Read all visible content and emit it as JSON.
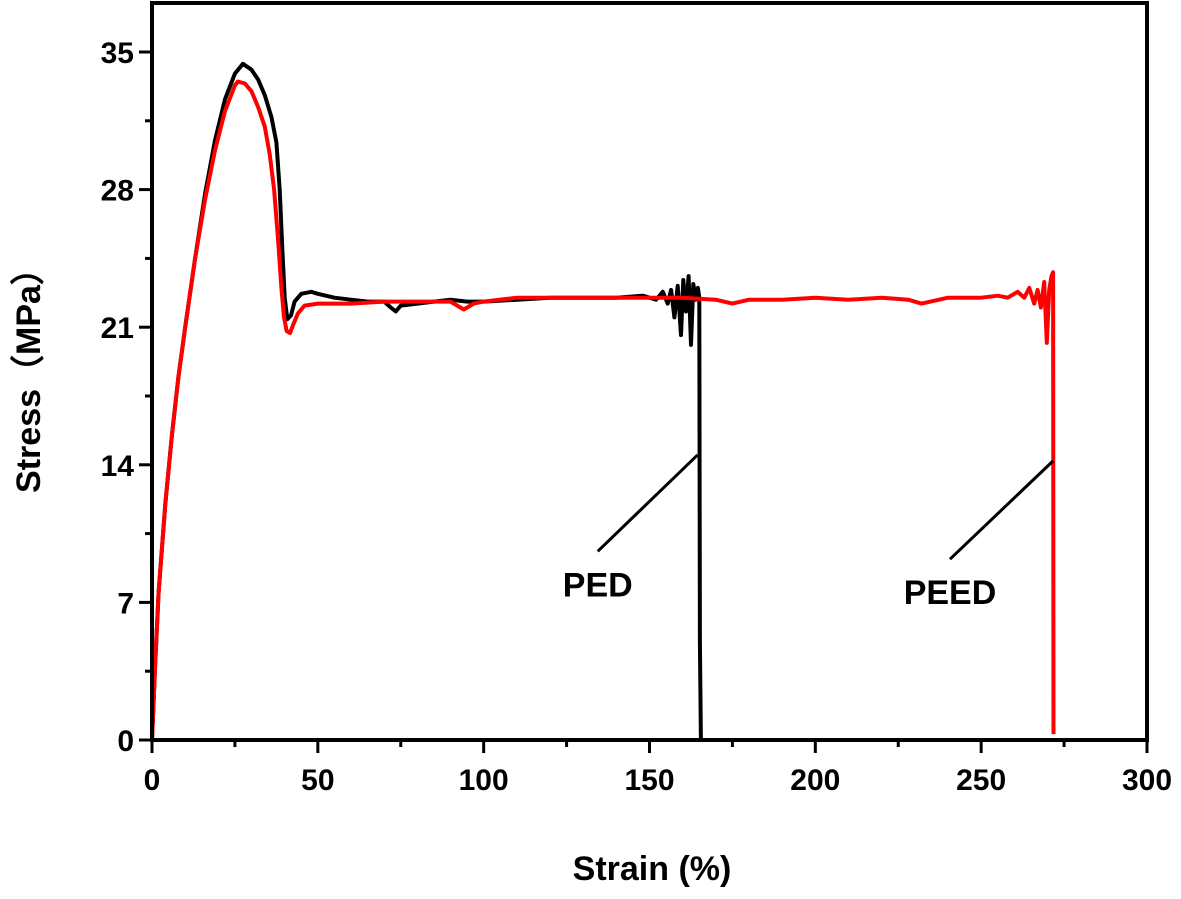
{
  "chart_data": {
    "type": "line",
    "title": "",
    "xlabel": "Strain (%)",
    "ylabel": "Stress（MPa）",
    "xlim": [
      0,
      300
    ],
    "ylim": [
      0,
      36.8
    ],
    "xticks": [
      0,
      50,
      100,
      150,
      200,
      250,
      300
    ],
    "yticks": [
      0,
      7,
      14,
      21,
      28,
      35
    ],
    "grid": false,
    "series": [
      {
        "name": "PED",
        "color": "#000000",
        "x": [
          0,
          1,
          2,
          4,
          6,
          8,
          10,
          13,
          16,
          19,
          22,
          25,
          27.4,
          30,
          32,
          34,
          36,
          37.5,
          38.5,
          39.3,
          40,
          40.8,
          41.9,
          43,
          45,
          48,
          50,
          55,
          60,
          65,
          70,
          72,
          73.5,
          75,
          80,
          85,
          90,
          95,
          100,
          110,
          120,
          130,
          140,
          148,
          152,
          154,
          155.5,
          156.5,
          157.5,
          158.5,
          159.5,
          160.2,
          161,
          161.8,
          162.5,
          163.2,
          164,
          164.6,
          165,
          165.2,
          165.5
        ],
        "y": [
          0,
          4,
          7.5,
          12,
          15.5,
          18.5,
          21,
          24.5,
          27.8,
          30.5,
          32.6,
          33.9,
          34.4,
          34.1,
          33.6,
          32.8,
          31.7,
          30.4,
          28,
          25,
          22.5,
          21.4,
          21.6,
          22.3,
          22.7,
          22.8,
          22.7,
          22.5,
          22.4,
          22.3,
          22.3,
          22,
          21.8,
          22.1,
          22.2,
          22.3,
          22.4,
          22.3,
          22.3,
          22.4,
          22.5,
          22.5,
          22.5,
          22.6,
          22.4,
          22.8,
          22.2,
          22.9,
          21.5,
          23.1,
          20.6,
          23.4,
          21.8,
          23.6,
          20.1,
          23.2,
          22.4,
          23,
          22.5,
          5,
          0
        ]
      },
      {
        "name": "PEED",
        "color": "#ff0000",
        "x": [
          0,
          1,
          2,
          4,
          6,
          8,
          10,
          13,
          16,
          19,
          22,
          25,
          25.9,
          28,
          30,
          32,
          34,
          35.5,
          36.8,
          38,
          39,
          39.8,
          40.6,
          41.6,
          42.5,
          44,
          46,
          50,
          55,
          60,
          70,
          80,
          90,
          94,
          97,
          100,
          110,
          120,
          140,
          160,
          170,
          175,
          180,
          190,
          200,
          210,
          220,
          228,
          232,
          240,
          250,
          255,
          258,
          261,
          263,
          264.5,
          266,
          267,
          268,
          269,
          269.8,
          270.5,
          271.2,
          271.7,
          271.8
        ],
        "y": [
          0,
          4,
          7.5,
          12,
          15.5,
          18.5,
          21,
          24.5,
          27.5,
          30,
          32,
          33.3,
          33.5,
          33.4,
          33,
          32.2,
          31.2,
          29.8,
          28,
          25.5,
          23,
          21.5,
          20.8,
          20.7,
          21.1,
          21.7,
          22.1,
          22.2,
          22.2,
          22.2,
          22.3,
          22.3,
          22.3,
          21.9,
          22.2,
          22.3,
          22.5,
          22.5,
          22.5,
          22.5,
          22.4,
          22.2,
          22.4,
          22.4,
          22.5,
          22.4,
          22.5,
          22.4,
          22.2,
          22.5,
          22.5,
          22.6,
          22.5,
          22.8,
          22.5,
          23,
          22.2,
          22.9,
          22.0,
          23.3,
          20.2,
          22.9,
          23.6,
          23.8,
          0.3
        ]
      }
    ],
    "annotations": [
      {
        "text": "PED",
        "series": "PED",
        "point": [
          164.5,
          14.5
        ],
        "label_at": [
          134.4,
          9.6
        ]
      },
      {
        "text": "PEED",
        "series": "PEED",
        "point": [
          271.7,
          14.2
        ],
        "label_at": [
          240.6,
          9.2
        ]
      }
    ]
  }
}
